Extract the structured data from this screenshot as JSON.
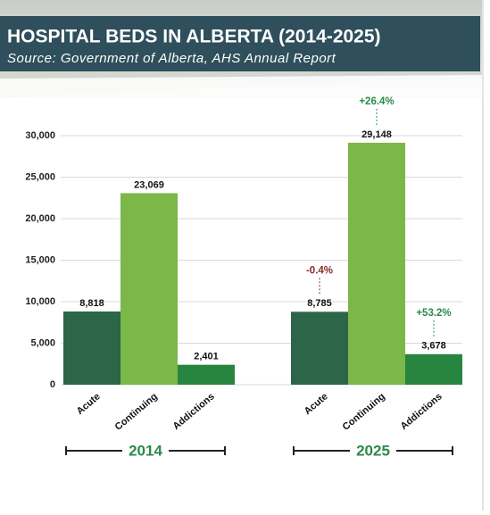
{
  "chart_data": {
    "type": "bar",
    "title": "HOSPITAL BEDS IN ALBERTA (2014-2025)",
    "subtitle": "Source: Government of Alberta, AHS Annual Report",
    "categories": [
      "2014",
      "2025"
    ],
    "series": [
      {
        "name": "Acute",
        "color": "#2d6548",
        "values": [
          8818,
          8785
        ],
        "value_labels": [
          "8,818",
          "8,785"
        ],
        "changes": [
          null,
          "-0.4%"
        ],
        "change_color": "#8b2c2c"
      },
      {
        "name": "Continuing",
        "color": "#7cb749",
        "values": [
          23069,
          29148
        ],
        "value_labels": [
          "23,069",
          "29,148"
        ],
        "changes": [
          null,
          "+26.4%"
        ],
        "change_color": "#2a8a47"
      },
      {
        "name": "Addictions",
        "color": "#27853f",
        "values": [
          2401,
          3678
        ],
        "value_labels": [
          "2,401",
          "3,678"
        ],
        "changes": [
          null,
          "+53.2%"
        ],
        "change_color": "#2a8a47"
      }
    ],
    "ylim": [
      0,
      30000
    ],
    "yticks": [
      0,
      {
        "value": 5000,
        "label": "5,000"
      },
      {
        "value": 10000,
        "label": "10,000"
      },
      {
        "value": 15000,
        "label": "15,000"
      },
      {
        "value": 20000,
        "label": "20,000"
      },
      {
        "value": 25000,
        "label": "25,000"
      },
      {
        "value": 30000,
        "label": "30,000"
      }
    ],
    "grid": true,
    "group_color": "#2a8a47"
  }
}
